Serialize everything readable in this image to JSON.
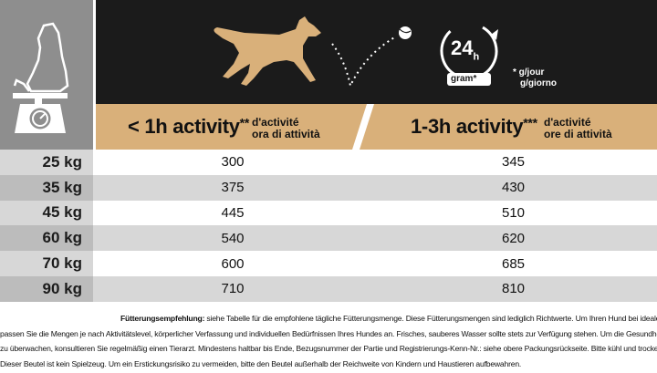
{
  "header": {
    "hours_badge": "24",
    "hours_badge_unit": "h",
    "gram_label": "gram",
    "gram_star": "*",
    "unit_fr": "* g/jour",
    "unit_it": "g/giorno"
  },
  "columns": [
    {
      "main": "< 1h activity",
      "stars": "**",
      "sub_fr": "d'activité",
      "sub_it": "ora di attività"
    },
    {
      "main": "1-3h activity",
      "stars": "***",
      "sub_fr": "d'activité",
      "sub_it": "ore di attività"
    }
  ],
  "rows": [
    {
      "weight": "25 kg",
      "a": "300",
      "b": "345"
    },
    {
      "weight": "35 kg",
      "a": "375",
      "b": "430"
    },
    {
      "weight": "45 kg",
      "a": "445",
      "b": "510"
    },
    {
      "weight": "60 kg",
      "a": "540",
      "b": "620"
    },
    {
      "weight": "70 kg",
      "a": "600",
      "b": "685"
    },
    {
      "weight": "90 kg",
      "a": "710",
      "b": "810"
    }
  ],
  "footnote": {
    "lead": "Fütterungsempfehlung:",
    "line1": " siehe Tabelle für die empfohlene tägliche Fütterungsmenge. Diese Fütterungsmengen sind lediglich Richtwerte. Um Ihren Hund bei idealer körperlicher Verfassung zu halten,",
    "line2": "passen Sie die Mengen je nach Aktivitätslevel, körperlicher Verfassung und individuellen Bedürfnissen Ihres Hundes an. Frisches, sauberes Wasser sollte stets zur Verfügung stehen. Um die Gesundheit Ihres Hundes",
    "line3": "zu überwachen, konsultieren Sie regelmäßig einen Tierarzt. Mindestens haltbar bis Ende, Bezugsnummer der Partie und Registrierungs-Kenn-Nr.: siehe obere Packungsrückseite. Bitte kühl und trocken lagern.",
    "line4": "Dieser Beutel ist kein Spielzeug. Um ein Erstickungsrisiko zu vermeiden, bitte den Beutel außerhalb der Reichweite von Kindern und Haustieren aufbewahren."
  },
  "colors": {
    "tan": "#d9b07a",
    "dark": "#1b1b1b",
    "grey": "#8e8e8e",
    "row_light": "#ffffff",
    "row_dark": "#d7d7d7"
  }
}
